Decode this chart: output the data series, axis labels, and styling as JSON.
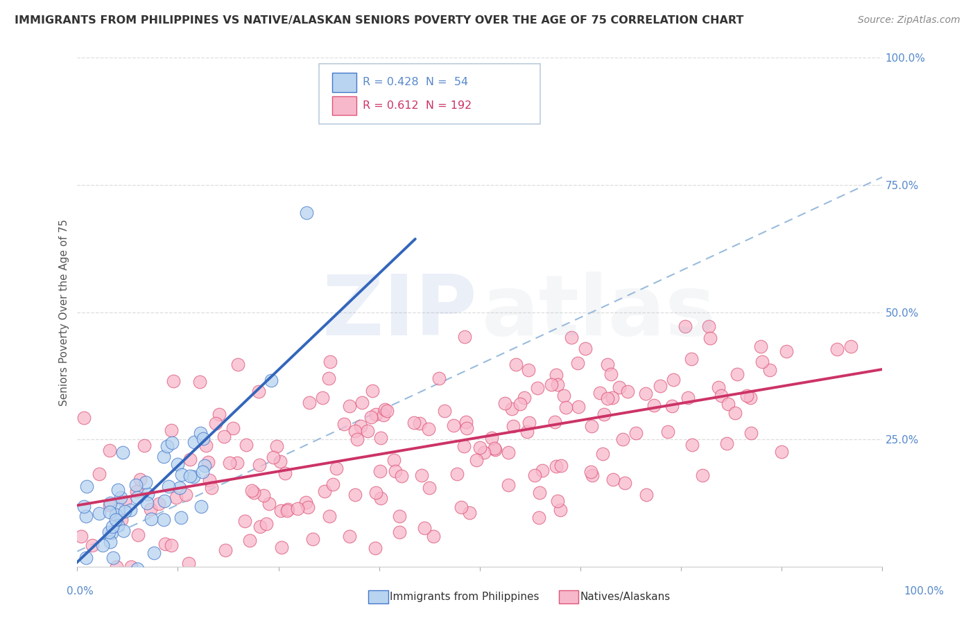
{
  "title": "IMMIGRANTS FROM PHILIPPINES VS NATIVE/ALASKAN SENIORS POVERTY OVER THE AGE OF 75 CORRELATION CHART",
  "source": "Source: ZipAtlas.com",
  "ylabel": "Seniors Poverty Over the Age of 75",
  "ytick_vals": [
    0.0,
    0.25,
    0.5,
    0.75,
    1.0
  ],
  "ytick_labels": [
    "",
    "25.0%",
    "50.0%",
    "75.0%",
    "100.0%"
  ],
  "r_blue": 0.428,
  "n_blue": 54,
  "r_pink": 0.612,
  "n_pink": 192,
  "color_blue_fill": "#b8d4f0",
  "color_blue_edge": "#4477cc",
  "color_blue_line": "#3366bb",
  "color_pink_fill": "#f8b8cc",
  "color_pink_edge": "#dd5577",
  "color_pink_line": "#cc3366",
  "color_dashed": "#99bbdd",
  "legend_label_blue": "Immigrants from Philippines",
  "legend_label_pink": "Natives/Alaskans",
  "bg": "#ffffff",
  "watermark_zip_color": "#6688cc",
  "watermark_atlas_color": "#aabbcc",
  "tick_label_color": "#5588cc",
  "title_color": "#333333",
  "source_color": "#888888",
  "ylabel_color": "#555555",
  "grid_color": "#dddddd"
}
